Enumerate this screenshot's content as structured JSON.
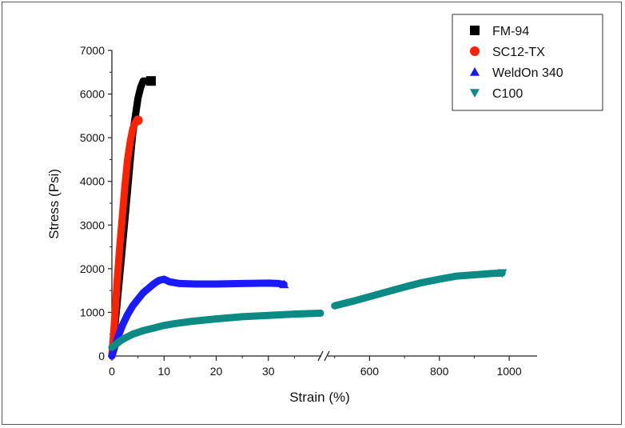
{
  "chart_data": {
    "type": "line",
    "xlabel": "Strain (%)",
    "ylabel": "Stress (Psi)",
    "ylim": [
      0,
      7000
    ],
    "y_ticks": [
      "0",
      "1000",
      "2000",
      "3000",
      "4000",
      "5000",
      "6000",
      "7000"
    ],
    "x_broken_axis": true,
    "x_segment_1": {
      "range": [
        0,
        40
      ],
      "ticks": [
        "0",
        "10",
        "20",
        "30"
      ]
    },
    "x_segment_2": {
      "range": [
        480,
        1080
      ],
      "ticks": [
        "600",
        "800",
        "1000"
      ]
    },
    "legend_position": "top-right",
    "grid": false,
    "series": [
      {
        "name": "FM-94",
        "color": "#000000",
        "marker": "square",
        "points": [
          [
            0,
            0
          ],
          [
            1,
            1200
          ],
          [
            2,
            2500
          ],
          [
            3,
            3800
          ],
          [
            3.6,
            4600
          ],
          [
            4,
            5100
          ],
          [
            4.5,
            5500
          ],
          [
            5,
            5900
          ],
          [
            5.5,
            6150
          ],
          [
            6,
            6300
          ],
          [
            7,
            6300
          ],
          [
            7.5,
            6300
          ]
        ]
      },
      {
        "name": "SC12-TX",
        "color": "#ff2200",
        "marker": "circle",
        "points": [
          [
            0,
            0
          ],
          [
            0.5,
            800
          ],
          [
            1,
            1700
          ],
          [
            1.5,
            2500
          ],
          [
            2,
            3200
          ],
          [
            2.5,
            3900
          ],
          [
            3,
            4500
          ],
          [
            3.5,
            4900
          ],
          [
            4,
            5200
          ],
          [
            4.5,
            5350
          ],
          [
            5,
            5400
          ]
        ]
      },
      {
        "name": "WeldOn 340",
        "color": "#1a1aff",
        "marker": "triangle-up",
        "points": [
          [
            0,
            0
          ],
          [
            1,
            380
          ],
          [
            2,
            700
          ],
          [
            3,
            950
          ],
          [
            4,
            1150
          ],
          [
            5,
            1300
          ],
          [
            6,
            1450
          ],
          [
            7,
            1550
          ],
          [
            8,
            1650
          ],
          [
            9,
            1730
          ],
          [
            10,
            1760
          ],
          [
            11,
            1700
          ],
          [
            13,
            1660
          ],
          [
            16,
            1650
          ],
          [
            20,
            1650
          ],
          [
            25,
            1660
          ],
          [
            30,
            1670
          ],
          [
            32,
            1660
          ],
          [
            33,
            1640
          ]
        ]
      },
      {
        "name": "C100",
        "color": "#0e8a84",
        "marker": "triangle-down",
        "points": [
          [
            0,
            200
          ],
          [
            2,
            380
          ],
          [
            4,
            500
          ],
          [
            6,
            580
          ],
          [
            8,
            640
          ],
          [
            10,
            700
          ],
          [
            12,
            740
          ],
          [
            15,
            790
          ],
          [
            20,
            850
          ],
          [
            25,
            900
          ],
          [
            30,
            930
          ],
          [
            35,
            960
          ],
          [
            40,
            980
          ],
          [
            500,
            1150
          ],
          [
            550,
            1250
          ],
          [
            600,
            1360
          ],
          [
            650,
            1470
          ],
          [
            700,
            1580
          ],
          [
            750,
            1680
          ],
          [
            800,
            1760
          ],
          [
            850,
            1830
          ],
          [
            900,
            1860
          ],
          [
            950,
            1890
          ],
          [
            980,
            1900
          ]
        ]
      }
    ]
  }
}
